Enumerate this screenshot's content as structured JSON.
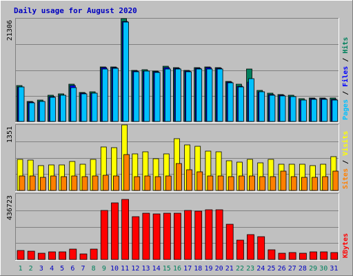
{
  "chart_data": {
    "type": "bar",
    "title": "Daily usage for August 2020",
    "categories": [
      "1",
      "2",
      "3",
      "4",
      "5",
      "6",
      "7",
      "8",
      "9",
      "10",
      "11",
      "12",
      "13",
      "14",
      "15",
      "16",
      "17",
      "18",
      "19",
      "20",
      "21",
      "22",
      "23",
      "24",
      "25",
      "26",
      "27",
      "28",
      "29",
      "30",
      "31"
    ],
    "weekend_days": [
      "1",
      "2",
      "8",
      "9",
      "15",
      "16",
      "22",
      "23",
      "29",
      "30"
    ],
    "panels": [
      {
        "name": "hits-files-pages",
        "ymax_label": "21306",
        "ylim": [
          0,
          21306
        ],
        "legend": [
          "Pages",
          "Files",
          "Hits"
        ],
        "series": [
          {
            "name": "Hits",
            "color": "#00805c",
            "values": [
              7400,
              4200,
              4400,
              5400,
              5700,
              7700,
              6000,
              6100,
              11300,
              11300,
              21306,
              10600,
              10700,
              10500,
              11400,
              11200,
              10600,
              11200,
              11300,
              11200,
              8300,
              7700,
              10900,
              6400,
              5800,
              5600,
              5400,
              4700,
              4900,
              4900,
              4800
            ]
          },
          {
            "name": "Files",
            "color": "#0000ff",
            "values": [
              7200,
              4000,
              4200,
              5200,
              5500,
              7500,
              5800,
              5900,
              11100,
              11100,
              20800,
              10400,
              10500,
              10300,
              11200,
              11000,
              10400,
              11000,
              11100,
              11000,
              8100,
              7300,
              8200,
              6200,
              5600,
              5400,
              5200,
              4500,
              4700,
              4700,
              4600
            ]
          },
          {
            "name": "Pages",
            "color": "#00c0ff",
            "values": [
              7100,
              3900,
              4100,
              5000,
              5400,
              7000,
              5700,
              5800,
              10900,
              11000,
              20600,
              10300,
              10400,
              10200,
              10900,
              10900,
              10300,
              10900,
              10900,
              10900,
              8000,
              7100,
              8900,
              6100,
              5500,
              5300,
              5100,
              4400,
              4600,
              4600,
              4500
            ]
          }
        ]
      },
      {
        "name": "visits-sites",
        "ymax_label": "1351",
        "ylim": [
          0,
          1351
        ],
        "legend": [
          "Sites",
          "Visits"
        ],
        "series": [
          {
            "name": "Visits",
            "color": "#ffff00",
            "values": [
              640,
              620,
              510,
              520,
              520,
              600,
              540,
              640,
              890,
              880,
              1351,
              760,
              790,
              660,
              760,
              1060,
              940,
              910,
              810,
              790,
              610,
              590,
              640,
              570,
              640,
              540,
              540,
              540,
              510,
              540,
              700
            ]
          },
          {
            "name": "Sites",
            "color": "#ff8000",
            "values": [
              300,
              300,
              270,
              300,
              290,
              300,
              280,
              300,
              310,
              300,
              740,
              280,
              300,
              290,
              300,
              550,
              430,
              380,
              300,
              300,
              290,
              300,
              300,
              280,
              290,
              400,
              280,
              270,
              270,
              280,
              400
            ]
          }
        ]
      },
      {
        "name": "kbytes",
        "ymax_label": "436723",
        "ylim": [
          0,
          436723
        ],
        "legend": [
          "KBytes"
        ],
        "series": [
          {
            "name": "KBytes",
            "color": "#ff0000",
            "values": [
              60000,
              55000,
              40000,
              50000,
              50000,
              70000,
              35000,
              70000,
              325000,
              375000,
              400000,
              285000,
              310000,
              305000,
              310000,
              310000,
              325000,
              320000,
              330000,
              330000,
              235000,
              130000,
              165000,
              150000,
              65000,
              40000,
              45000,
              40000,
              50000,
              50000,
              45000
            ]
          }
        ]
      }
    ],
    "colors": {
      "background": "#c0c0c0",
      "plot_bg": "#c0c0c0",
      "title": "#0000c0",
      "axis_text": "#000000",
      "weekday_label": "#0000c0",
      "weekend_label": "#00805c",
      "separator": "#000000",
      "gridline": "#808080"
    }
  }
}
